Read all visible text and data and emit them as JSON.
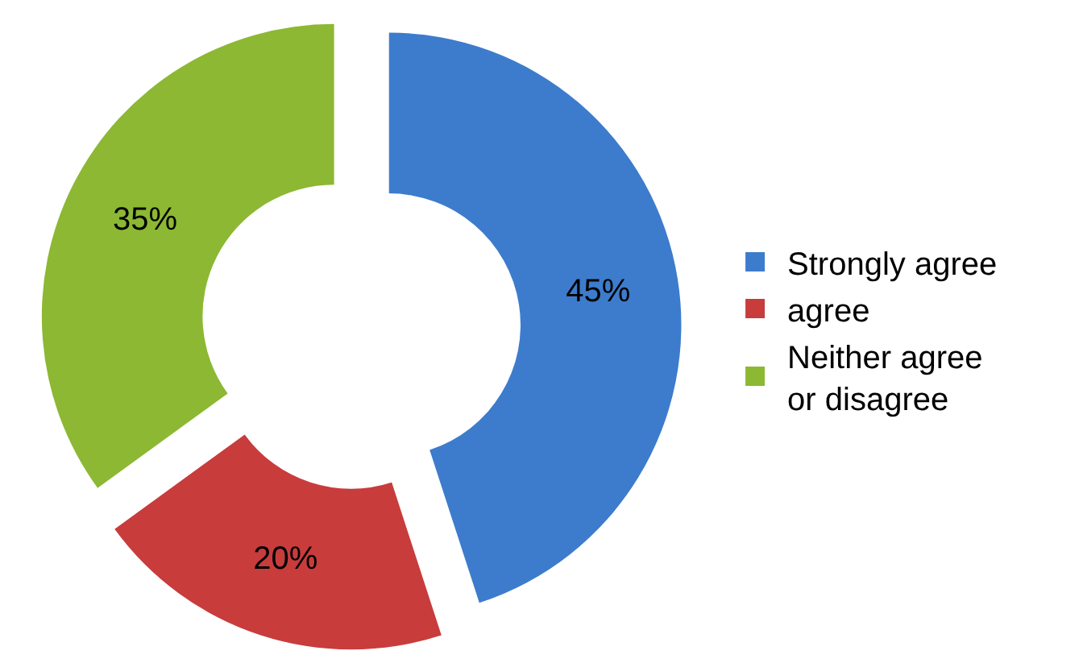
{
  "chart_data": {
    "type": "donut",
    "categories": [
      "Strongly agree",
      "agree",
      "Neither agree or disagree"
    ],
    "values": [
      45,
      20,
      35
    ],
    "colors": [
      "#3d7ccc",
      "#c83c3c",
      "#8cb833"
    ],
    "value_labels": [
      "45%",
      "20%",
      "35%"
    ],
    "legend": "right"
  }
}
